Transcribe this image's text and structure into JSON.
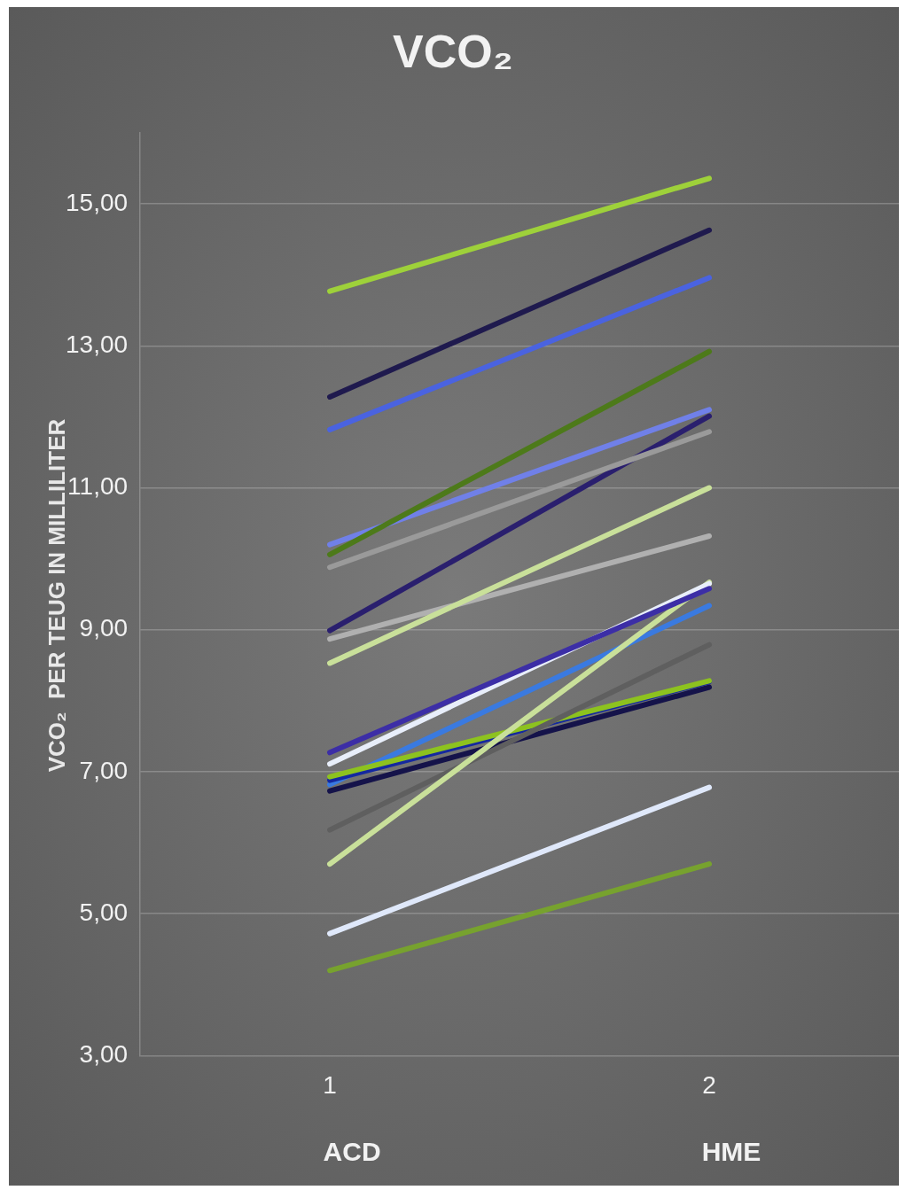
{
  "chart_data": {
    "type": "line",
    "title": "VCO₂",
    "ylabel": "VCO₂  PER TEUG IN MILLILITER",
    "categories": [
      "1",
      "2"
    ],
    "annotations": [
      "ACD",
      "HME"
    ],
    "ylim": [
      3,
      16
    ],
    "yticks": [
      {
        "value": 3,
        "label": "3,00"
      },
      {
        "value": 5,
        "label": "5,00"
      },
      {
        "value": 7,
        "label": "7,00"
      },
      {
        "value": 9,
        "label": "9,00"
      },
      {
        "value": 11,
        "label": "11,00"
      },
      {
        "value": 13,
        "label": "13,00"
      },
      {
        "value": 15,
        "label": "15,00"
      }
    ],
    "grid": "y",
    "legend": false,
    "marker": "none",
    "line_style": "solid",
    "series": [
      {
        "color": "#9ed13a",
        "values": [
          13.77,
          15.36
        ]
      },
      {
        "color": "#1f1a4e",
        "values": [
          12.28,
          14.63
        ]
      },
      {
        "color": "#4a63e0",
        "values": [
          11.82,
          13.96
        ]
      },
      {
        "color": "#4d7a1a",
        "values": [
          10.06,
          12.92
        ]
      },
      {
        "color": "#7080e8",
        "values": [
          10.2,
          12.1
        ]
      },
      {
        "color": "#9a9a9a",
        "values": [
          9.88,
          11.79
        ]
      },
      {
        "color": "#2a1f6e",
        "values": [
          8.99,
          12.01
        ]
      },
      {
        "color": "#c9e09a",
        "values": [
          8.53,
          11.0
        ]
      },
      {
        "color": "#b0b0b0",
        "values": [
          8.87,
          10.32
        ]
      },
      {
        "color": "#3c2ea6",
        "values": [
          7.27,
          9.58
        ]
      },
      {
        "color": "#e8eefa",
        "values": [
          7.11,
          9.65
        ]
      },
      {
        "color": "#c9e09a",
        "values": [
          5.7,
          9.67
        ]
      },
      {
        "color": "#5f5f5f",
        "values": [
          6.18,
          8.79
        ]
      },
      {
        "color": "#8dc21f",
        "values": [
          6.93,
          8.28
        ]
      },
      {
        "color": "#1428a0",
        "values": [
          6.88,
          8.27
        ]
      },
      {
        "color": "#3a7ae0",
        "values": [
          6.82,
          9.34
        ]
      },
      {
        "color": "#15134a",
        "values": [
          6.73,
          8.19
        ]
      },
      {
        "color": "#dfe8fa",
        "values": [
          4.72,
          6.78
        ]
      },
      {
        "color": "#77a22e",
        "values": [
          4.2,
          5.7
        ]
      }
    ]
  }
}
